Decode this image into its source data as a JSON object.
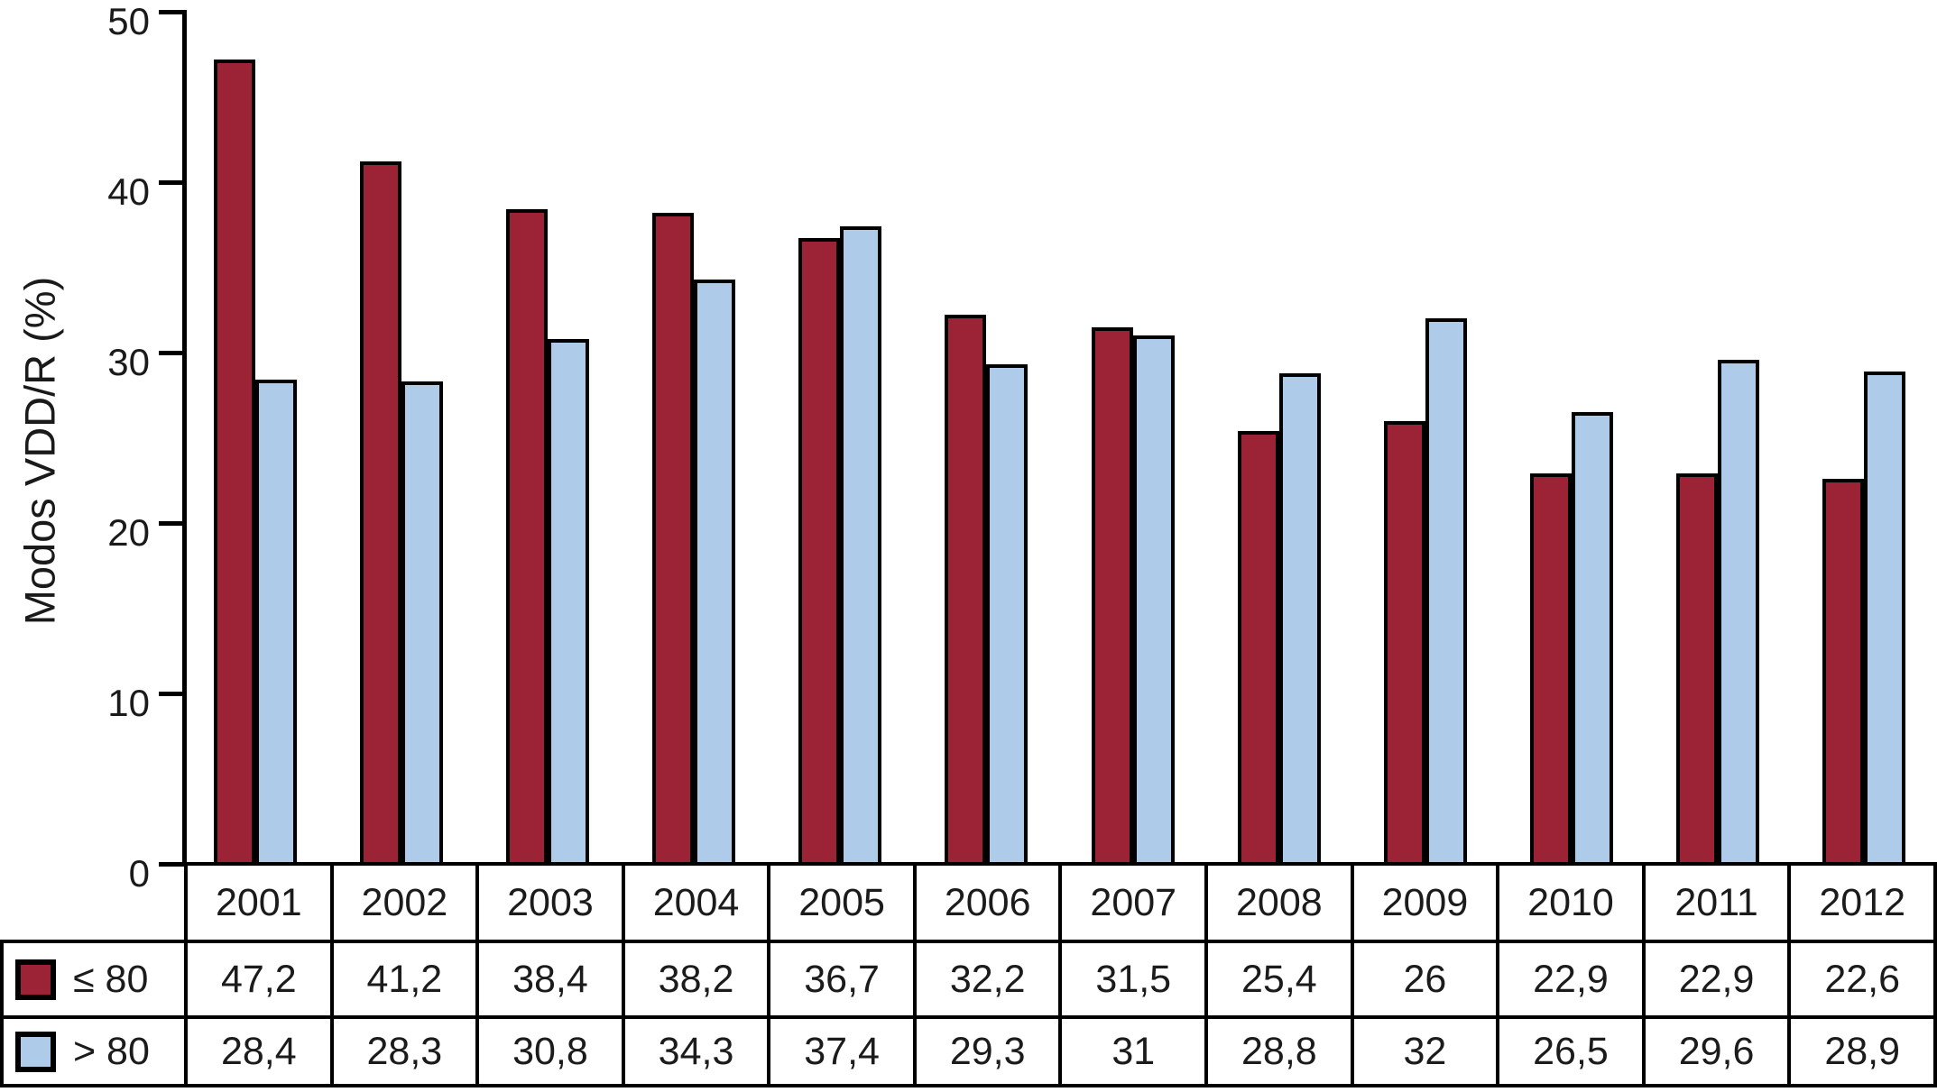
{
  "chart_data": {
    "type": "bar",
    "title": "",
    "xlabel": "",
    "ylabel": "Modos VDD/R (%)",
    "ylim": [
      0,
      50
    ],
    "yticks": [
      0,
      10,
      20,
      30,
      40,
      50
    ],
    "grid": false,
    "legend_position": "table-rows-left",
    "axis_color": "#000000",
    "categories": [
      "2001",
      "2002",
      "2003",
      "2004",
      "2005",
      "2006",
      "2007",
      "2008",
      "2009",
      "2010",
      "2011",
      "2012"
    ],
    "series": [
      {
        "name": "≤ 80",
        "id": "le80",
        "color": "#9C2235",
        "values": [
          47.2,
          41.2,
          38.4,
          38.2,
          36.7,
          32.2,
          31.5,
          25.4,
          26,
          22.9,
          22.9,
          22.6
        ],
        "display": [
          "47,2",
          "41,2",
          "38,4",
          "38,2",
          "36,7",
          "32,2",
          "31,5",
          "25,4",
          "26",
          "22,9",
          "22,9",
          "22,6"
        ]
      },
      {
        "name": "> 80",
        "id": "gt80",
        "color": "#AECBE9",
        "values": [
          28.4,
          28.3,
          30.8,
          34.3,
          37.4,
          29.3,
          31,
          28.8,
          32,
          26.5,
          29.6,
          28.9
        ],
        "display": [
          "28,4",
          "28,3",
          "30,8",
          "34,3",
          "37,4",
          "29,3",
          "31",
          "28,8",
          "32",
          "26,5",
          "29,6",
          "28,9"
        ]
      }
    ]
  }
}
